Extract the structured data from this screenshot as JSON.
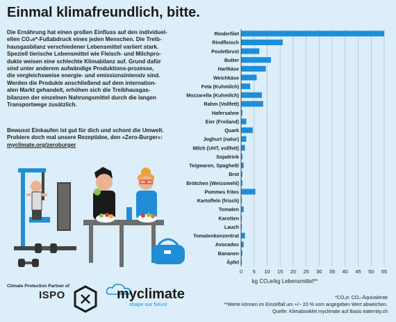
{
  "page": {
    "title": "Einmal klimafreundlich, bitte.",
    "intro": "Die Ernährung hat einen großen Einfluss auf den individuel-\nellen CO₂e*-Fußabdruck eines jeden Menschen. Die Treib-\nhausgasbilanz verschiedener Lebensmittel variiert stark.\nSpeziell tierische Lebensmittel wie Fleisch- und Milchpro-\ndukte weisen eine schlechte Klimabilanz auf. Grund dafür\nsind unter anderem aufwändige Produktions-prozesse,\ndie vergleichsweise energie- und emissionsintensiv sind.\nWerden die Produkte anschließend auf dem internation-\nalen Markt gehandelt, erhöhen sich die Treibhausgas-\nbilanzen der einzelnen Nahrungsmittel durch die langen\nTransportwege zusätzlich.",
    "cta_text": "Bewusst Einkaufen ist gut für dich und schont die Umwelt.\nProbiere doch mal unsere Rezeptidee, den «Zero-Burger»:",
    "cta_link": "myclimate.org/zeroburger"
  },
  "logos": {
    "partner_label": "Climate Protection Partner of",
    "ispo": "ISPO",
    "myclimate_name": "myclimate",
    "myclimate_tagline": "shape our future"
  },
  "footnotes": [
    "*CO₂e: CO₂-Äquivalente",
    "**Werte können im Einzelfall um +/− 20 % vom angegeben Wert abweichen.",
    "Quelle: Klimabooklet myclimate auf Basis eaternity.ch"
  ],
  "colors": {
    "background": "#dceef9",
    "bar": "#1f8ed6",
    "grid": "#9fb6c6",
    "text": "#1a1a1a"
  },
  "chart_data": {
    "type": "bar",
    "orientation": "horizontal",
    "xlabel": "kg CO₂e/kg Lebensmittel**",
    "xlim": [
      0,
      55
    ],
    "xticks": [
      0,
      5,
      10,
      15,
      20,
      25,
      30,
      35,
      40,
      45,
      50,
      55
    ],
    "grid": true,
    "categories": [
      "Rinderfilet",
      "Rindfleisch",
      "Pouletbrust",
      "Butter",
      "Hartkäse",
      "Weichkäse",
      "Feta (Kuhmilch)",
      "Mozzarella (Kuhmilch)",
      "Rahm (Vollfett)",
      "Hafersahne",
      "Eier (Freiland)",
      "Quark",
      "Joghurt (natur)",
      "Milch (UHT, vollfett)",
      "Sojadrink",
      "Teigwaren, Spaghetti",
      "Brot",
      "Brötchen (Weissmehl)",
      "Pommes frites",
      "Kartoffeln (frisch)",
      "Tomaten",
      "Karotten",
      "Lauch",
      "Tomatenkonzentrat",
      "Avocados",
      "Bananen",
      "Äpfel"
    ],
    "values": [
      55,
      16,
      7,
      11.5,
      9.5,
      6,
      3.5,
      8,
      8.5,
      0.5,
      2,
      4.5,
      2,
      1.5,
      0.5,
      1,
      0.5,
      0.5,
      5.5,
      0.3,
      1,
      0.3,
      0.3,
      1.5,
      1,
      0.5,
      0.3
    ]
  }
}
